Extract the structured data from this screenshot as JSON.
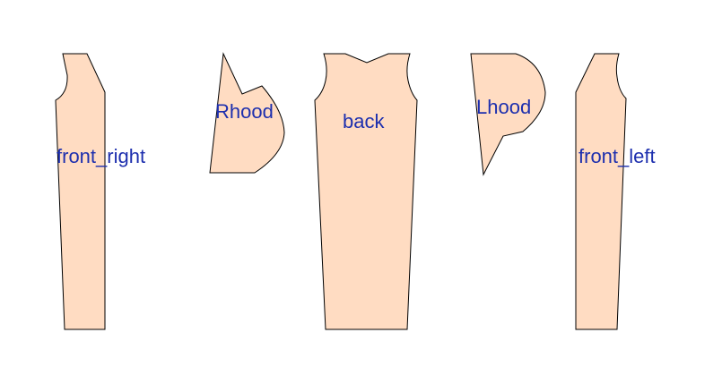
{
  "colors": {
    "background": "#ffffff",
    "piece_fill": "#ffdcc2",
    "outline": "#000000",
    "label": "#1d2fae"
  },
  "pieces": [
    {
      "id": "front_right",
      "label": "front_right"
    },
    {
      "id": "Rhood",
      "label": "Rhood"
    },
    {
      "id": "back",
      "label": "back"
    },
    {
      "id": "Lhood",
      "label": "Lhood"
    },
    {
      "id": "front_left",
      "label": "front_left"
    }
  ]
}
